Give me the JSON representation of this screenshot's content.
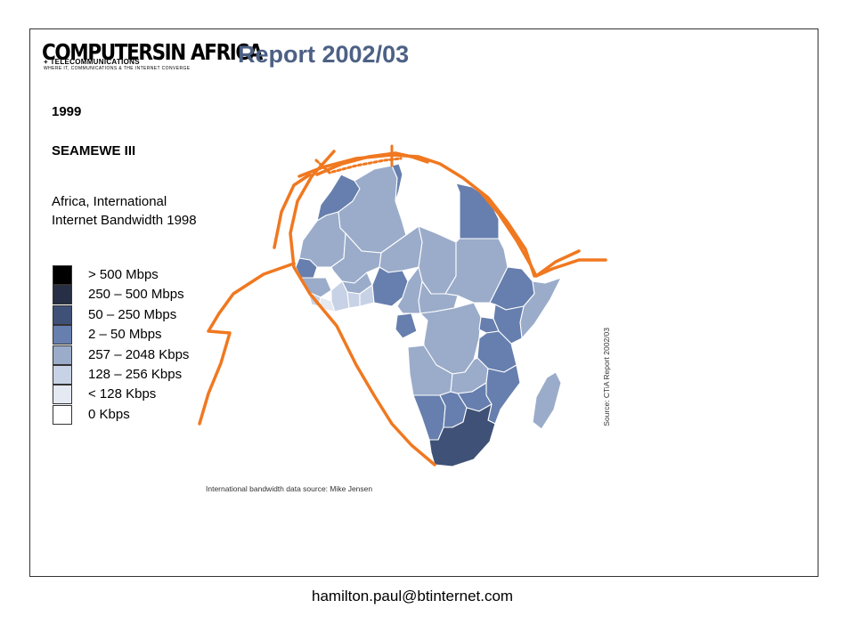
{
  "header": {
    "logo_main_1": "COMPUTERS",
    "logo_main_2": "IN AFRICA",
    "logo_sub_1": "+ TELECOMMUNICATIONS",
    "logo_sub_2": "WHERE IT, COMMUNICATIONS & THE INTERNET CONVERGE",
    "report_title": "Report 2002/03"
  },
  "panel": {
    "year": "1999",
    "cable_name": "SEAMEWE III",
    "map_title": "Africa, International Internet Bandwidth 1998"
  },
  "legend": {
    "items": [
      {
        "label": "> 500 Mbps",
        "color": "#000000"
      },
      {
        "label": "250 – 500 Mbps",
        "color": "#262f45"
      },
      {
        "label": "50 – 250 Mbps",
        "color": "#3f5177"
      },
      {
        "label": "2 – 50 Mbps",
        "color": "#667fae"
      },
      {
        "label": "257 – 2048 Kbps",
        "color": "#9bacca"
      },
      {
        "label": "128 – 256 Kbps",
        "color": "#c8d2e6"
      },
      {
        "label": "< 128 Kbps",
        "color": "#e4e9f2"
      },
      {
        "label": "0 Kbps",
        "color": "#ffffff"
      }
    ]
  },
  "map": {
    "cable_color": "#f07820",
    "border_color": "#ffffff"
  },
  "sources": {
    "bottom": "International bandwidth data source: Mike Jensen",
    "side": "Source: CTiA Report 2002/03"
  },
  "footer": {
    "email": "hamilton.paul@btinternet.com"
  }
}
